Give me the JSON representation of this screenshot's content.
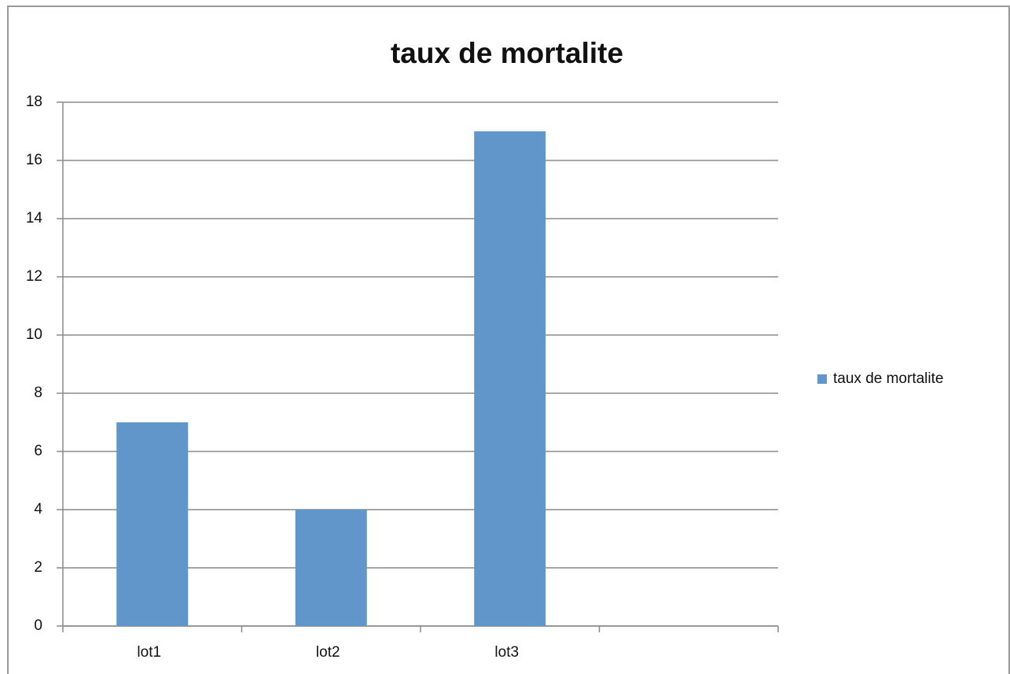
{
  "chart_data": {
    "type": "bar",
    "title": "taux de mortalite",
    "categories": [
      "lot1",
      "lot2",
      "lot3",
      null
    ],
    "series": [
      {
        "name": "taux de mortalite",
        "color": "#6096c9",
        "values": [
          7,
          4,
          17,
          null
        ]
      }
    ],
    "ylim": [
      0,
      18
    ],
    "yticks": [
      0,
      2,
      4,
      6,
      8,
      10,
      12,
      14,
      16,
      18
    ],
    "grid": true,
    "legend": "right"
  }
}
